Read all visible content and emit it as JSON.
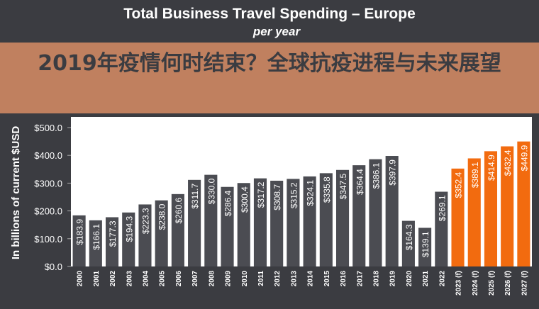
{
  "chart_data": {
    "type": "bar",
    "title": "Total Business Travel Spending – Europe",
    "subtitle": "per year",
    "ylabel": "In billions of current $USD",
    "xlabel": "",
    "ylim": [
      0,
      500
    ],
    "yticks": [
      "$0.0",
      "$100.0",
      "$200.0",
      "$300.0",
      "$400.0",
      "$500.0"
    ],
    "categories": [
      "2000",
      "2001",
      "2002",
      "2003",
      "2004",
      "2005",
      "2006",
      "2007",
      "2008",
      "2009",
      "2010",
      "2011",
      "2012",
      "2013",
      "2014",
      "2015",
      "2016",
      "2017",
      "2018",
      "2019",
      "2020",
      "2021",
      "2022",
      "2023 (f)",
      "2024 (f)",
      "2025 (f)",
      "2026 (f)",
      "2027 (f)"
    ],
    "values": [
      183.9,
      166.1,
      177.3,
      194.3,
      223.3,
      238.0,
      260.6,
      311.7,
      330.0,
      286.4,
      300.4,
      317.2,
      308.7,
      315.2,
      324.1,
      335.8,
      347.5,
      364.4,
      386.1,
      397.9,
      164.3,
      139.1,
      269.1,
      352.4,
      389.1,
      414.9,
      432.4,
      449.9
    ],
    "data_labels": [
      "$183.9",
      "$166.1",
      "$177.3",
      "$194.3",
      "$223.3",
      "$238.0",
      "$260.6",
      "$311.7",
      "$330.0",
      "$286.4",
      "$300.4",
      "$317.2",
      "$308.7",
      "$315.2",
      "$324.1",
      "$335.8",
      "$347.5",
      "$364.4",
      "$386.1",
      "$397.9",
      "$164.3",
      "$139.1",
      "$269.1",
      "$352.4",
      "$389.1",
      "$414.9",
      "$432.4",
      "$449.9"
    ],
    "colors": {
      "actual": "#4b4c52",
      "forecast": "#f26b0f",
      "background": "#3b3c41",
      "plot": "#ffffff"
    },
    "grid": false
  },
  "banner": {
    "text": "2019年疫情何时结束？全球抗疫进程与未来展望"
  }
}
